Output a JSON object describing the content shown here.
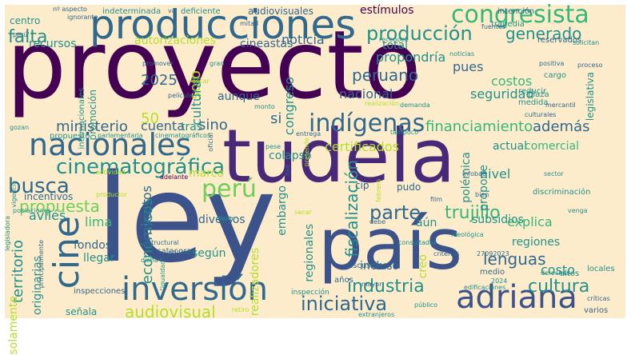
{
  "canvas": {
    "background": "#fdeccb"
  },
  "palette": {
    "dark_purple": "#440154",
    "indigo": "#3b528b",
    "slate": "#31688e",
    "teal": "#21918c",
    "green": "#35b779",
    "light_green": "#6ece58",
    "lime": "#b5de2b",
    "yellow": "#fde725",
    "violet": "#482878"
  },
  "word_cloud": {
    "words": [
      {
        "text": "proyecto",
        "color": "dark_purple"
      },
      {
        "text": "ley",
        "color": "indigo"
      },
      {
        "text": "tudela",
        "color": "violet"
      },
      {
        "text": "país",
        "color": "indigo"
      },
      {
        "text": "producciones",
        "color": "slate"
      },
      {
        "text": "nacionales",
        "color": "slate"
      },
      {
        "text": "inversión",
        "color": "slate"
      },
      {
        "text": "adriana",
        "color": "indigo"
      },
      {
        "text": "cine",
        "color": "slate"
      },
      {
        "text": "congresista",
        "color": "green"
      },
      {
        "text": "indígenas",
        "color": "slate"
      },
      {
        "text": "cinematográfica",
        "color": "teal"
      },
      {
        "text": "perú",
        "color": "light_green"
      },
      {
        "text": "producción",
        "color": "teal"
      },
      {
        "text": "iniciativa",
        "color": "slate"
      },
      {
        "text": "industria",
        "color": "teal"
      },
      {
        "text": "parte",
        "color": "slate"
      },
      {
        "text": "cultura",
        "color": "teal"
      },
      {
        "text": "busca",
        "color": "slate"
      },
      {
        "text": "propuesta",
        "color": "light_green"
      },
      {
        "text": "audiovisual",
        "color": "lime"
      },
      {
        "text": "trujillo",
        "color": "green"
      },
      {
        "text": "lenguas",
        "color": "slate"
      },
      {
        "text": "ministerio",
        "color": "slate"
      },
      {
        "text": "peruano",
        "color": "slate"
      },
      {
        "text": "financiamiento",
        "color": "green"
      },
      {
        "text": "además",
        "color": "slate"
      },
      {
        "text": "sino",
        "color": "slate"
      },
      {
        "text": "falta",
        "color": "teal"
      },
      {
        "text": "generado",
        "color": "teal"
      },
      {
        "text": "económicos",
        "color": "teal"
      },
      {
        "text": "proyectos",
        "color": "slate"
      },
      {
        "text": "fiscalización",
        "color": "teal"
      },
      {
        "text": "territorio",
        "color": "teal"
      },
      {
        "text": "2025",
        "color": "slate"
      },
      {
        "text": "50",
        "color": "lime"
      },
      {
        "text": "solo",
        "color": "lime"
      },
      {
        "text": "estímulos",
        "color": "dark_purple"
      },
      {
        "text": "autorizaciones",
        "color": "lime"
      },
      {
        "text": "recursos",
        "color": "teal"
      },
      {
        "text": "cineastas",
        "color": "slate"
      },
      {
        "text": "noticia",
        "color": "slate"
      },
      {
        "text": "total",
        "color": "teal"
      },
      {
        "text": "propondría",
        "color": "teal"
      },
      {
        "text": "pues",
        "color": "slate"
      },
      {
        "text": "costos",
        "color": "green"
      },
      {
        "text": "seguridad",
        "color": "teal"
      },
      {
        "text": "nacional",
        "color": "slate"
      },
      {
        "text": "congreso",
        "color": "teal"
      },
      {
        "text": "aunque",
        "color": "slate"
      },
      {
        "text": "cultural",
        "color": "teal"
      },
      {
        "text": "si",
        "color": "slate"
      },
      {
        "text": "cuenta",
        "color": "slate"
      },
      {
        "text": "tras",
        "color": "teal"
      },
      {
        "text": "certificados",
        "color": "lime"
      },
      {
        "text": "actual",
        "color": "teal"
      },
      {
        "text": "comercial",
        "color": "green"
      },
      {
        "text": "colapso",
        "color": "teal"
      },
      {
        "text": "marco",
        "color": "lime"
      },
      {
        "text": "diversos",
        "color": "slate"
      },
      {
        "text": "embargo",
        "color": "teal"
      },
      {
        "text": "nivel",
        "color": "teal"
      },
      {
        "text": "propone",
        "color": "teal"
      },
      {
        "text": "polémica",
        "color": "teal"
      },
      {
        "text": "subsidios",
        "color": "teal"
      },
      {
        "text": "explica",
        "color": "green"
      },
      {
        "text": "regiones",
        "color": "teal"
      },
      {
        "text": "aún",
        "color": "teal"
      },
      {
        "text": "según",
        "color": "teal"
      },
      {
        "text": "realizadores",
        "color": "lime"
      },
      {
        "text": "regionales",
        "color": "teal"
      },
      {
        "text": "incluso",
        "color": "slate"
      },
      {
        "text": "creo",
        "color": "lime"
      },
      {
        "text": "costo",
        "color": "teal"
      },
      {
        "text": "avilés",
        "color": "teal"
      },
      {
        "text": "lima",
        "color": "green"
      },
      {
        "text": "fondos",
        "color": "slate"
      },
      {
        "text": "llegar",
        "color": "teal"
      },
      {
        "text": "originarias",
        "color": "teal"
      },
      {
        "text": "solamente",
        "color": "lime"
      },
      {
        "text": "señala",
        "color": "teal"
      },
      {
        "text": "incentivos",
        "color": "slate"
      },
      {
        "text": "centro",
        "color": "teal"
      },
      {
        "text": "deficiente",
        "color": "teal"
      },
      {
        "text": "audiovisuales",
        "color": "slate"
      },
      {
        "text": "indeterminada",
        "color": "teal"
      },
      {
        "text": "nº aspecto",
        "color": "slate"
      },
      {
        "text": "promoción",
        "color": "teal"
      },
      {
        "text": "internacionales",
        "color": "teal"
      },
      {
        "text": "inspecciones",
        "color": "slate"
      },
      {
        "text": "inspección",
        "color": "teal"
      },
      {
        "text": "discusión",
        "color": "slate"
      },
      {
        "text": "edificaciones",
        "color": "teal"
      },
      {
        "text": "legislativa",
        "color": "teal"
      },
      {
        "text": "discriminación",
        "color": "teal"
      },
      {
        "text": "intención",
        "color": "slate"
      },
      {
        "text": "tragedia",
        "color": "teal"
      },
      {
        "text": "reservados",
        "color": "slate"
      },
      {
        "text": "cargo",
        "color": "teal"
      },
      {
        "text": "reducir",
        "color": "teal"
      },
      {
        "text": "plaza",
        "color": "teal"
      },
      {
        "text": "medida",
        "color": "teal"
      },
      {
        "text": "mercantil",
        "color": "slate"
      },
      {
        "text": "culturales",
        "color": "slate"
      },
      {
        "text": "tampoco",
        "color": "teal"
      },
      {
        "text": "parlamentaria",
        "color": "teal"
      },
      {
        "text": "cinematográficos",
        "color": "teal"
      },
      {
        "text": "propuesto",
        "color": "teal"
      },
      {
        "text": "oficial",
        "color": "slate"
      },
      {
        "text": "pese",
        "color": "teal"
      },
      {
        "text": "pudo",
        "color": "slate"
      },
      {
        "text": "cip",
        "color": "slate"
      },
      {
        "text": "años",
        "color": "slate"
      },
      {
        "text": "mayor",
        "color": "slate"
      },
      {
        "text": "público",
        "color": "teal"
      },
      {
        "text": "retiro",
        "color": "lime"
      },
      {
        "text": "críticas",
        "color": "slate"
      },
      {
        "text": "varios",
        "color": "slate"
      },
      {
        "text": "locales",
        "color": "teal"
      },
      {
        "text": "altos",
        "color": "teal"
      },
      {
        "text": "derechos",
        "color": "teal"
      },
      {
        "text": "medio",
        "color": "slate"
      },
      {
        "text": "2024",
        "color": "teal"
      },
      {
        "text": "27092023",
        "color": "slate"
      },
      {
        "text": "criterios",
        "color": "slate"
      },
      {
        "text": "film",
        "color": "slate"
      },
      {
        "text": "debe",
        "color": "slate"
      },
      {
        "text": "favor",
        "color": "teal"
      },
      {
        "text": "itse",
        "color": "slate"
      },
      {
        "text": "sacar",
        "color": "lime"
      },
      {
        "text": "monto",
        "color": "teal"
      },
      {
        "text": "entrega",
        "color": "slate"
      },
      {
        "text": "pretende",
        "color": "lime"
      },
      {
        "text": "promover",
        "color": "slate"
      },
      {
        "text": "óscar",
        "color": "lime"
      },
      {
        "text": "película",
        "color": "slate"
      },
      {
        "text": "gran",
        "color": "teal"
      },
      {
        "text": "noticias",
        "color": "teal"
      },
      {
        "text": "solicitan",
        "color": "teal"
      },
      {
        "text": "proceso",
        "color": "slate"
      },
      {
        "text": "positiva",
        "color": "slate"
      },
      {
        "text": "fuentes",
        "color": "slate"
      },
      {
        "text": "reconoce",
        "color": "teal"
      },
      {
        "text": "mitad",
        "color": "slate"
      },
      {
        "text": "va",
        "color": "slate"
      },
      {
        "text": "ignorante",
        "color": "slate"
      },
      {
        "text": "perú'",
        "color": "slate"
      },
      {
        "text": "demanda",
        "color": "teal"
      },
      {
        "text": "realización",
        "color": "lime"
      },
      {
        "text": "estructural",
        "color": "slate"
      },
      {
        "text": "catacora",
        "color": "slate"
      },
      {
        "text": "principal",
        "color": "slate"
      },
      {
        "text": "poblaciones",
        "color": "teal"
      },
      {
        "text": "actividad",
        "color": "lime"
      },
      {
        "text": "adelante",
        "color": "dark_purple"
      },
      {
        "text": "gozan",
        "color": "teal"
      },
      {
        "text": "vigencia",
        "color": "teal"
      },
      {
        "text": "legisladora",
        "color": "teal"
      },
      {
        "text": "principalmente",
        "color": "slate"
      },
      {
        "text": "productor",
        "color": "lime"
      },
      {
        "text": "dicha",
        "color": "teal"
      },
      {
        "text": "\"igualdad\"",
        "color": "teal"
      },
      {
        "text": "extranjeros",
        "color": "teal"
      },
      {
        "text": "consultados",
        "color": "teal"
      },
      {
        "text": "ideológica",
        "color": "teal"
      },
      {
        "text": "venga",
        "color": "teal"
      },
      {
        "text": "febrero",
        "color": "lime"
      },
      {
        "text": "infobae",
        "color": "slate"
      },
      {
        "text": "sector",
        "color": "teal"
      },
      {
        "text": "bien",
        "color": "slate"
      }
    ]
  }
}
